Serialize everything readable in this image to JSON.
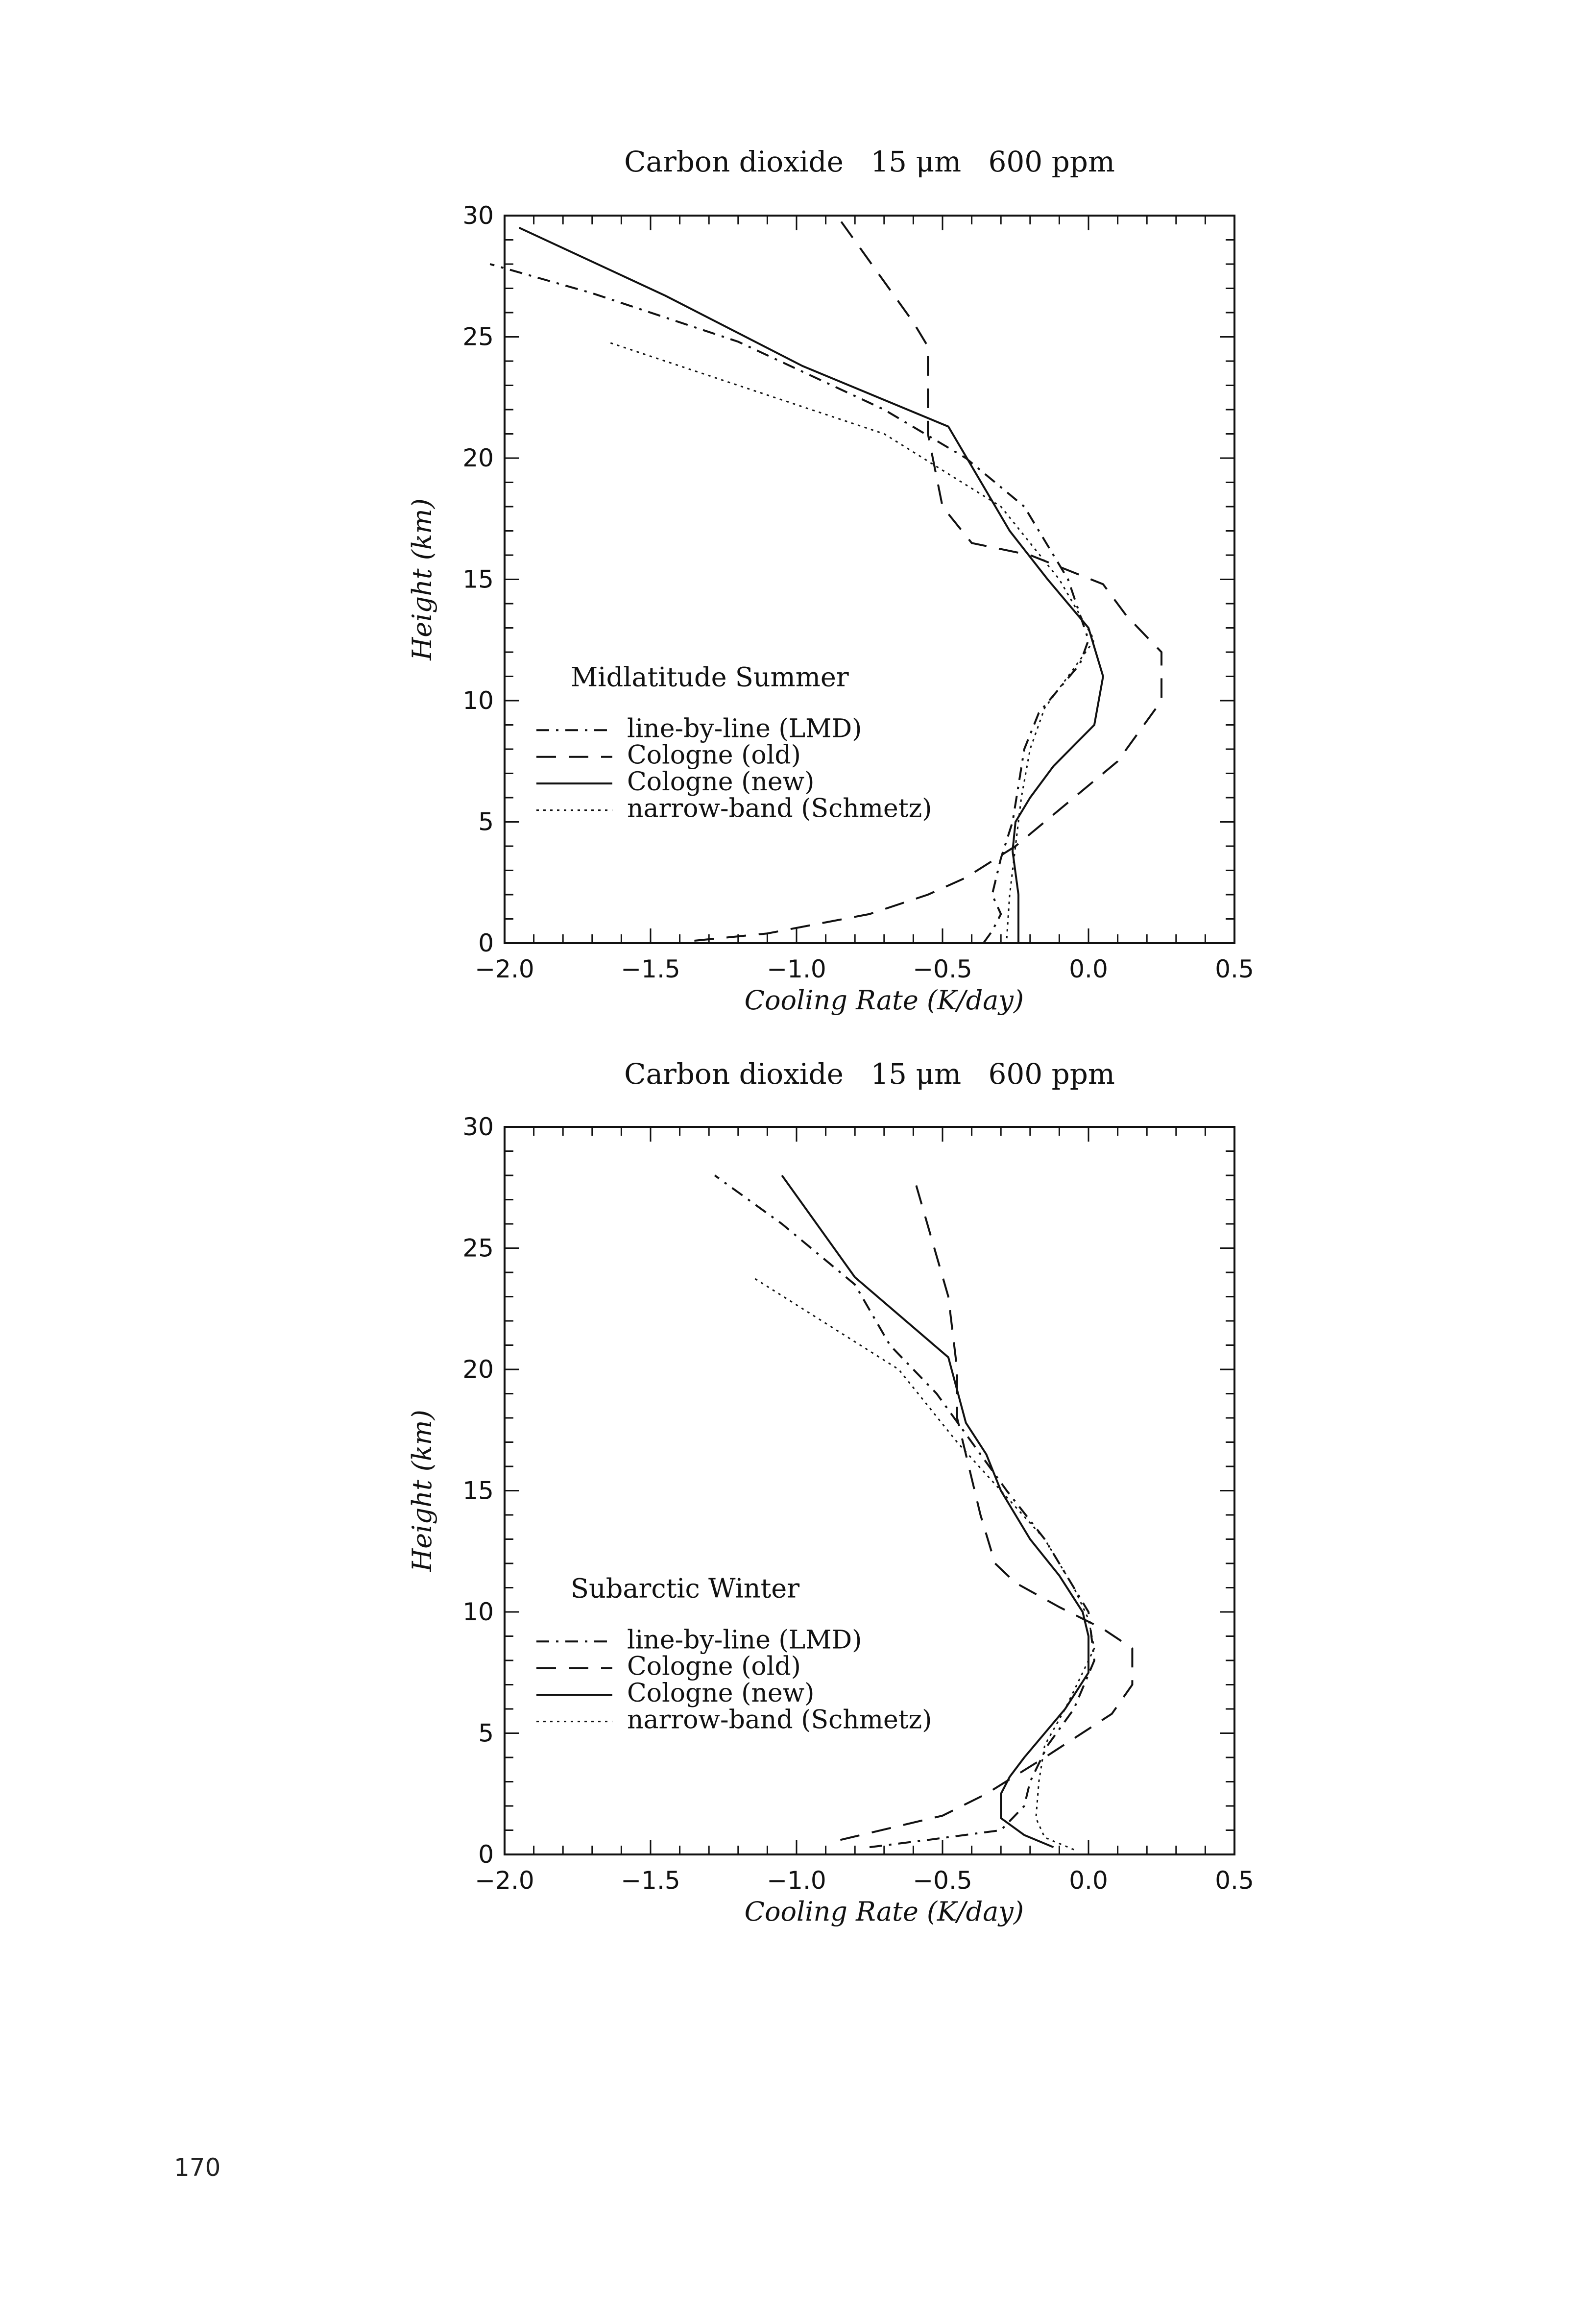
{
  "page_number": "170",
  "chart_data": [
    {
      "type": "line",
      "title": "Carbon dioxide   15 μm   600 ppm",
      "xlabel": "Cooling Rate (K/day)",
      "ylabel": "Height (km)",
      "xlim": [
        -2.0,
        0.5
      ],
      "ylim": [
        0,
        30
      ],
      "xticks": [
        "−2.0",
        "−1.5",
        "−1.0",
        "−0.5",
        "0.0",
        "0.5"
      ],
      "yticks": [
        "0",
        "5",
        "10",
        "15",
        "20",
        "25",
        "30"
      ],
      "annotation": "Midlatitude Summer",
      "legend_position": "center-left",
      "series": [
        {
          "name": "line-by-line (LMD)",
          "style": "dashdot",
          "x": [
            -0.36,
            -0.33,
            -0.3,
            -0.33,
            -0.3,
            -0.26,
            -0.24,
            -0.22,
            -0.17,
            -0.1,
            -0.03,
            0.0,
            -0.07,
            -0.22,
            -0.42,
            -0.7,
            -1.2,
            -1.7,
            -2.05
          ],
          "y": [
            0,
            0.5,
            1.2,
            2.0,
            3.5,
            5.0,
            6.5,
            8.0,
            9.5,
            10.5,
            11.5,
            12.5,
            15.0,
            18.0,
            20.0,
            22.0,
            24.8,
            26.8,
            28.0
          ]
        },
        {
          "name": "Cologne (old)",
          "style": "dashed",
          "x": [
            -1.35,
            -1.1,
            -0.75,
            -0.55,
            -0.42,
            -0.25,
            0.1,
            0.25,
            0.25,
            0.13,
            0.05,
            -0.2,
            -0.4,
            -0.5,
            -0.55,
            -0.55,
            -0.6,
            -0.85
          ],
          "y": [
            0.1,
            0.4,
            1.2,
            2.0,
            2.7,
            4.0,
            7.5,
            10.0,
            12.0,
            13.5,
            14.8,
            16.0,
            16.5,
            18.0,
            21.0,
            24.6,
            25.6,
            29.8
          ]
        },
        {
          "name": "Cologne (new)",
          "style": "solid",
          "x": [
            -0.24,
            -0.24,
            -0.26,
            -0.25,
            -0.2,
            -0.12,
            0.02,
            0.05,
            0.0,
            -0.14,
            -0.27,
            -0.48,
            -0.98,
            -1.45,
            -1.95
          ],
          "y": [
            0,
            2.0,
            3.8,
            5.0,
            6.0,
            7.3,
            9.0,
            11.0,
            13.0,
            15.0,
            17.0,
            21.3,
            23.8,
            26.7,
            29.5
          ]
        },
        {
          "name": "narrow-band (Schmetz)",
          "style": "dotted",
          "x": [
            -0.28,
            -0.27,
            -0.25,
            -0.23,
            -0.2,
            -0.15,
            -0.07,
            0.02,
            -0.1,
            -0.3,
            -0.7,
            -1.65
          ],
          "y": [
            0.2,
            2.0,
            4.0,
            6.0,
            8.0,
            9.7,
            11.0,
            12.5,
            15.0,
            18.0,
            21.0,
            24.8
          ]
        }
      ]
    },
    {
      "type": "line",
      "title": "Carbon dioxide   15 μm   600 ppm",
      "xlabel": "Cooling Rate (K/day)",
      "ylabel": "Height (km)",
      "xlim": [
        -2.0,
        0.5
      ],
      "ylim": [
        0,
        30
      ],
      "xticks": [
        "−2.0",
        "−1.5",
        "−1.0",
        "−0.5",
        "0.0",
        "0.5"
      ],
      "yticks": [
        "0",
        "5",
        "10",
        "15",
        "20",
        "25",
        "30"
      ],
      "annotation": "Subarctic Winter",
      "legend_position": "center-left",
      "series": [
        {
          "name": "line-by-line (LMD)",
          "style": "dashdot",
          "x": [
            -0.75,
            -0.55,
            -0.3,
            -0.22,
            -0.2,
            -0.14,
            -0.05,
            0.02,
            0.0,
            -0.05,
            -0.15,
            -0.28,
            -0.4,
            -0.52,
            -0.68,
            -0.8,
            -1.05,
            -1.28
          ],
          "y": [
            0.3,
            0.6,
            1.0,
            2.0,
            3.0,
            4.5,
            6.0,
            8.0,
            10.0,
            11.0,
            13.0,
            15.0,
            17.0,
            19.0,
            21.0,
            23.5,
            26.0,
            28.0
          ]
        },
        {
          "name": "Cologne (old)",
          "style": "dashed",
          "x": [
            -0.85,
            -0.5,
            -0.35,
            -0.15,
            0.08,
            0.15,
            0.15,
            0.05,
            -0.1,
            -0.25,
            -0.32,
            -0.37,
            -0.45,
            -0.45,
            -0.48,
            -0.6
          ],
          "y": [
            0.6,
            1.6,
            2.5,
            4.0,
            5.8,
            7.0,
            8.5,
            9.3,
            10.2,
            11.2,
            12.0,
            14.0,
            18.0,
            20.0,
            23.0,
            28.0
          ]
        },
        {
          "name": "Cologne (new)",
          "style": "solid",
          "x": [
            -0.12,
            -0.22,
            -0.3,
            -0.3,
            -0.27,
            -0.22,
            -0.15,
            -0.08,
            0.0,
            0.0,
            -0.02,
            -0.1,
            -0.2,
            -0.3,
            -0.35,
            -0.42,
            -0.48,
            -0.8,
            -1.05
          ],
          "y": [
            0.3,
            0.8,
            1.5,
            2.5,
            3.2,
            4.0,
            5.0,
            6.0,
            7.5,
            9.0,
            10.0,
            11.5,
            13.0,
            15.0,
            16.5,
            17.8,
            20.5,
            23.8,
            28.0
          ]
        },
        {
          "name": "narrow-band (Schmetz)",
          "style": "dotted",
          "x": [
            -0.05,
            -0.15,
            -0.18,
            -0.17,
            -0.15,
            -0.08,
            -0.02,
            0.02,
            0.0,
            -0.05,
            -0.15,
            -0.3,
            -0.45,
            -0.65,
            -1.15
          ],
          "y": [
            0.2,
            0.7,
            1.5,
            3.0,
            4.5,
            6.0,
            7.5,
            8.5,
            9.7,
            11.0,
            13.0,
            15.0,
            17.0,
            20.0,
            23.8
          ]
        }
      ]
    }
  ]
}
